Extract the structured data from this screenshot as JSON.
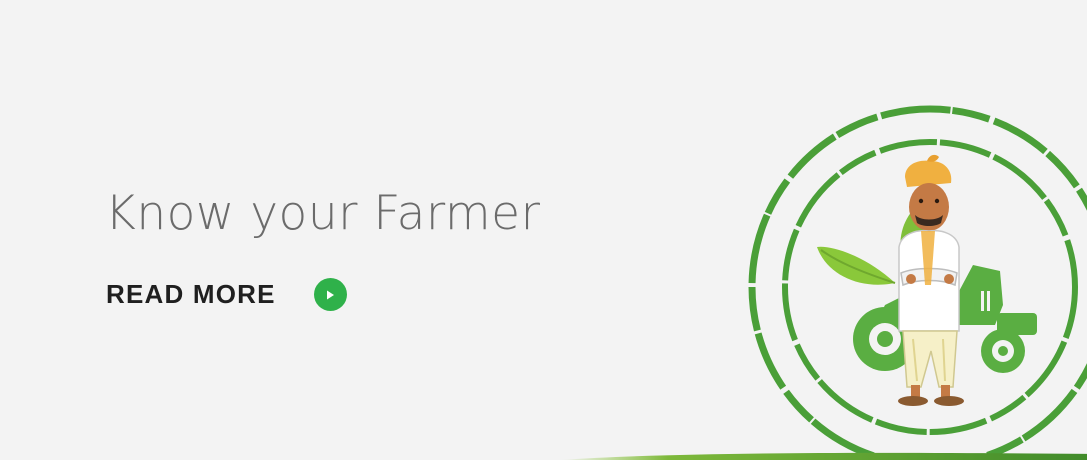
{
  "hero": {
    "headline": "Know your Farmer",
    "cta_label": "READ MORE"
  },
  "icons": {
    "cta_icon": "play-icon",
    "emblem": "farmer-tractor-emblem"
  },
  "colors": {
    "background": "#f3f3f3",
    "headline": "#6b6b6b",
    "cta_text": "#1f1f1f",
    "accent_green": "#2fb14a",
    "emblem_green": "#4a9f38"
  }
}
